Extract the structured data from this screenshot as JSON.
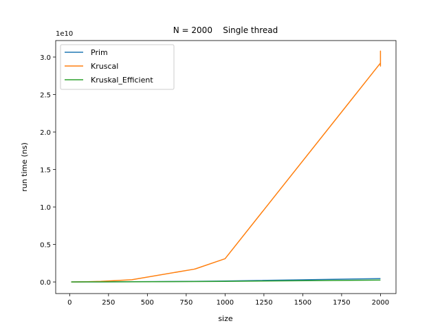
{
  "chart_data": {
    "type": "line",
    "title": "N = 2000    Single thread",
    "xlabel": "size",
    "ylabel": "run time (ns)",
    "y_offset_label": "1e10",
    "xlim": [
      -90,
      2100
    ],
    "ylim": [
      -0.155,
      3.22
    ],
    "xticks": [
      0,
      250,
      500,
      750,
      1000,
      1250,
      1500,
      1750,
      2000
    ],
    "yticks": [
      {
        "value": 0,
        "label": "0.0"
      },
      0.5,
      {
        "value": 1,
        "label": "1.0"
      },
      1.5,
      {
        "value": 2,
        "label": "2.0"
      },
      2.5,
      {
        "value": 3,
        "label": "3.0"
      }
    ],
    "legend": "upper left",
    "series": [
      {
        "name": "Prim",
        "color": "#1f77b4",
        "x": [
          10,
          100,
          200,
          400,
          800,
          1000,
          2000
        ],
        "values": [
          0,
          0.0005,
          0.001,
          0.003,
          0.008,
          0.012,
          0.045
        ]
      },
      {
        "name": "Kruscal",
        "color": "#ff7f0e",
        "x": [
          10,
          100,
          200,
          400,
          800,
          810,
          1000,
          2000,
          2000,
          2000,
          2000
        ],
        "values": [
          0,
          0.002,
          0.008,
          0.03,
          0.17,
          0.175,
          0.31,
          2.92,
          3.08,
          2.88,
          2.95
        ]
      },
      {
        "name": "Kruskal_Efficient",
        "color": "#2ca02c",
        "x": [
          10,
          100,
          200,
          400,
          800,
          1000,
          2000
        ],
        "values": [
          0,
          0.0004,
          0.001,
          0.002,
          0.005,
          0.008,
          0.025
        ]
      }
    ]
  }
}
